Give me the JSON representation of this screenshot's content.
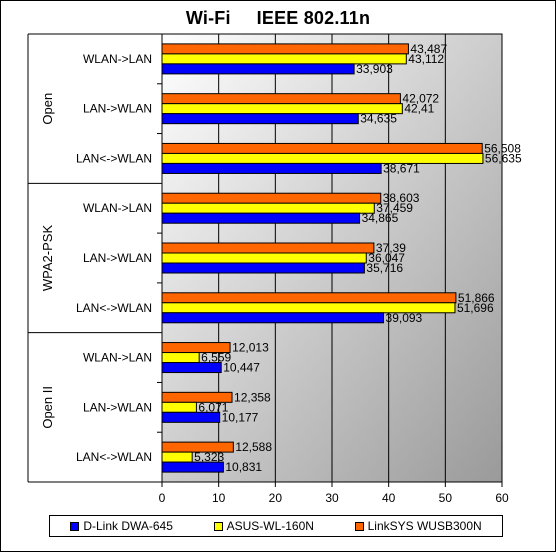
{
  "chart_data": {
    "type": "bar",
    "orientation": "horizontal",
    "title": "Wi-Fi IEEE 802.11n",
    "title_parts": [
      "Wi-Fi",
      "IEEE 802.11n"
    ],
    "xlim": [
      0,
      60
    ],
    "x_ticks": [
      "0",
      "10",
      "20",
      "30",
      "40",
      "50",
      "60"
    ],
    "grid": "vertical",
    "legend_position": "bottom",
    "groups": [
      {
        "name": "Open",
        "categories": [
          "WLAN->LAN",
          "LAN->WLAN",
          "LAN<->WLAN"
        ]
      },
      {
        "name": "WPA2-PSK",
        "categories": [
          "WLAN->LAN",
          "LAN->WLAN",
          "LAN<->WLAN"
        ]
      },
      {
        "name": "Open II",
        "categories": [
          "WLAN->LAN",
          "LAN->WLAN",
          "LAN<->WLAN"
        ]
      }
    ],
    "series": [
      {
        "name": "D-Link DWA-645",
        "color": "#0000ff",
        "values": [
          33.903,
          34.635,
          38.671,
          34.865,
          35.716,
          39.093,
          10.447,
          10.177,
          10.831
        ],
        "labels": [
          "33,903",
          "34,635",
          "38,671",
          "34,865",
          "35,716",
          "39,093",
          "10,447",
          "10,177",
          "10,831"
        ]
      },
      {
        "name": "ASUS-WL-160N",
        "color": "#ffff00",
        "values": [
          43.112,
          42.41,
          56.635,
          37.459,
          36.047,
          51.696,
          6.559,
          6.071,
          5.323
        ],
        "labels": [
          "43,112",
          "42,41",
          "56,635",
          "37,459",
          "36,047",
          "51,696",
          "6,559",
          "6,071",
          "5,323"
        ]
      },
      {
        "name": "LinkSYS WUSB300N",
        "color": "#ff6600",
        "values": [
          43.487,
          42.072,
          56.508,
          38.603,
          37.39,
          51.866,
          12.013,
          12.358,
          12.588
        ],
        "labels": [
          "43,487",
          "42,072",
          "56,508",
          "38,603",
          "37,39",
          "51,866",
          "12,013",
          "12,358",
          "12,588"
        ]
      }
    ]
  }
}
